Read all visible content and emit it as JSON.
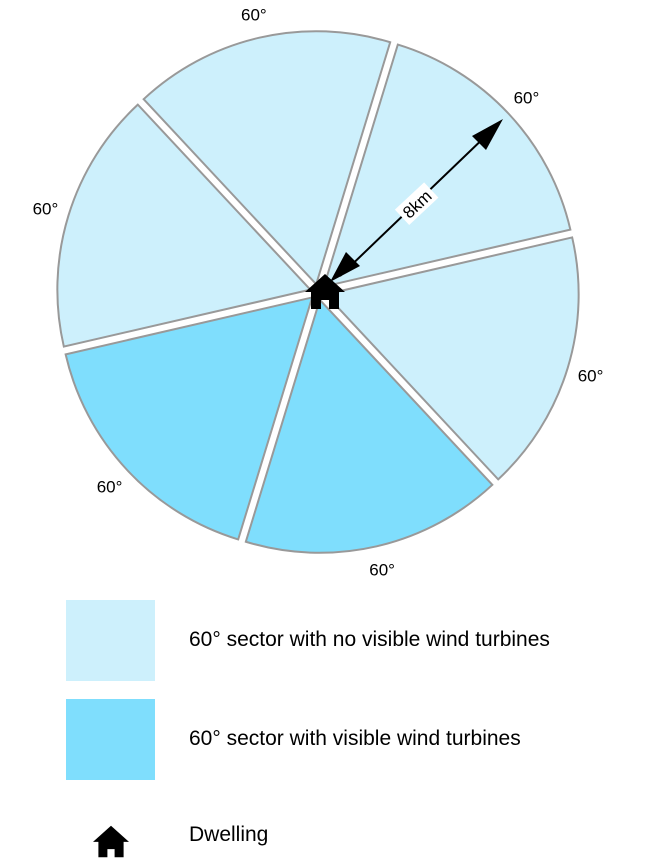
{
  "sectors": [
    {
      "angle_label": "60°",
      "visible_turbines": false
    },
    {
      "angle_label": "60°",
      "visible_turbines": false
    },
    {
      "angle_label": "60°",
      "visible_turbines": true
    },
    {
      "angle_label": "60°",
      "visible_turbines": true
    },
    {
      "angle_label": "60°",
      "visible_turbines": false
    },
    {
      "angle_label": "60°",
      "visible_turbines": false
    }
  ],
  "radius_label": "8km",
  "colors": {
    "no_turbines": "#cdf0fc",
    "turbines": "#7fdefd",
    "outline": "#999999",
    "dwelling": "#000000"
  },
  "icons": {
    "dwelling": "house-icon"
  },
  "legend": {
    "no_turbines_label": "60° sector with no visible wind turbines",
    "turbines_label": "60° sector with visible wind turbines",
    "dwelling_label": "Dwelling"
  }
}
